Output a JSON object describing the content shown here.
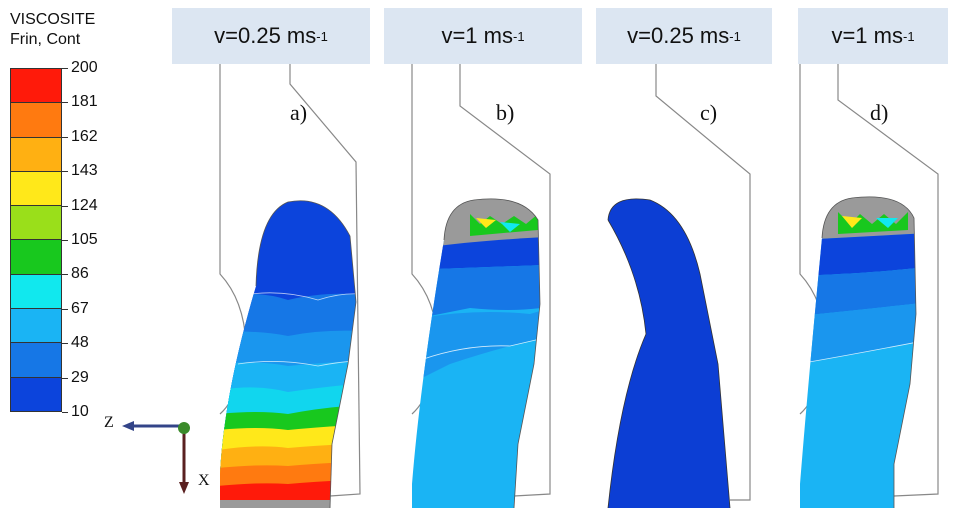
{
  "legend": {
    "title_line1": "VISCOSITE",
    "title_line2": "Frin, Cont",
    "labels": [
      "200",
      "181",
      "162",
      "143",
      "124",
      "105",
      "86",
      "67",
      "48",
      "29",
      "10"
    ],
    "colors": [
      "#ff1a0a",
      "#ff7a10",
      "#ffb012",
      "#ffe81a",
      "#9adf1a",
      "#18c81e",
      "#11e8ee",
      "#1ab4f4",
      "#1677e6",
      "#0c44dc"
    ]
  },
  "panels": [
    {
      "speed_prefix": "v=0.25 ms",
      "speed_exp": "-1",
      "label": "a)"
    },
    {
      "speed_prefix": "v=1 ms",
      "speed_exp": "-1",
      "label": "b)"
    },
    {
      "speed_prefix": "v=0.25 ms",
      "speed_exp": "-1",
      "label": "c)"
    },
    {
      "speed_prefix": "v=1 ms",
      "speed_exp": "-1",
      "label": "d)"
    }
  ],
  "axes": {
    "z_label": "Z",
    "x_label": "X"
  },
  "chart_data": {
    "type": "heatmap",
    "colorbar": {
      "title": "VISCOSITE Frin, Cont",
      "ticks": [
        200,
        181,
        162,
        143,
        124,
        105,
        86,
        67,
        48,
        29,
        10
      ],
      "range": [
        10,
        200
      ]
    },
    "panels": [
      {
        "label": "a)",
        "speed": "v=0.25 ms-1",
        "value_range": [
          10,
          200
        ]
      },
      {
        "label": "b)",
        "speed": "v=1 ms-1",
        "value_range": [
          10,
          105
        ]
      },
      {
        "label": "c)",
        "speed": "v=0.25 ms-1",
        "value_range": [
          10,
          29
        ]
      },
      {
        "label": "d)",
        "speed": "v=1 ms-1",
        "value_range": [
          10,
          124
        ]
      }
    ]
  }
}
